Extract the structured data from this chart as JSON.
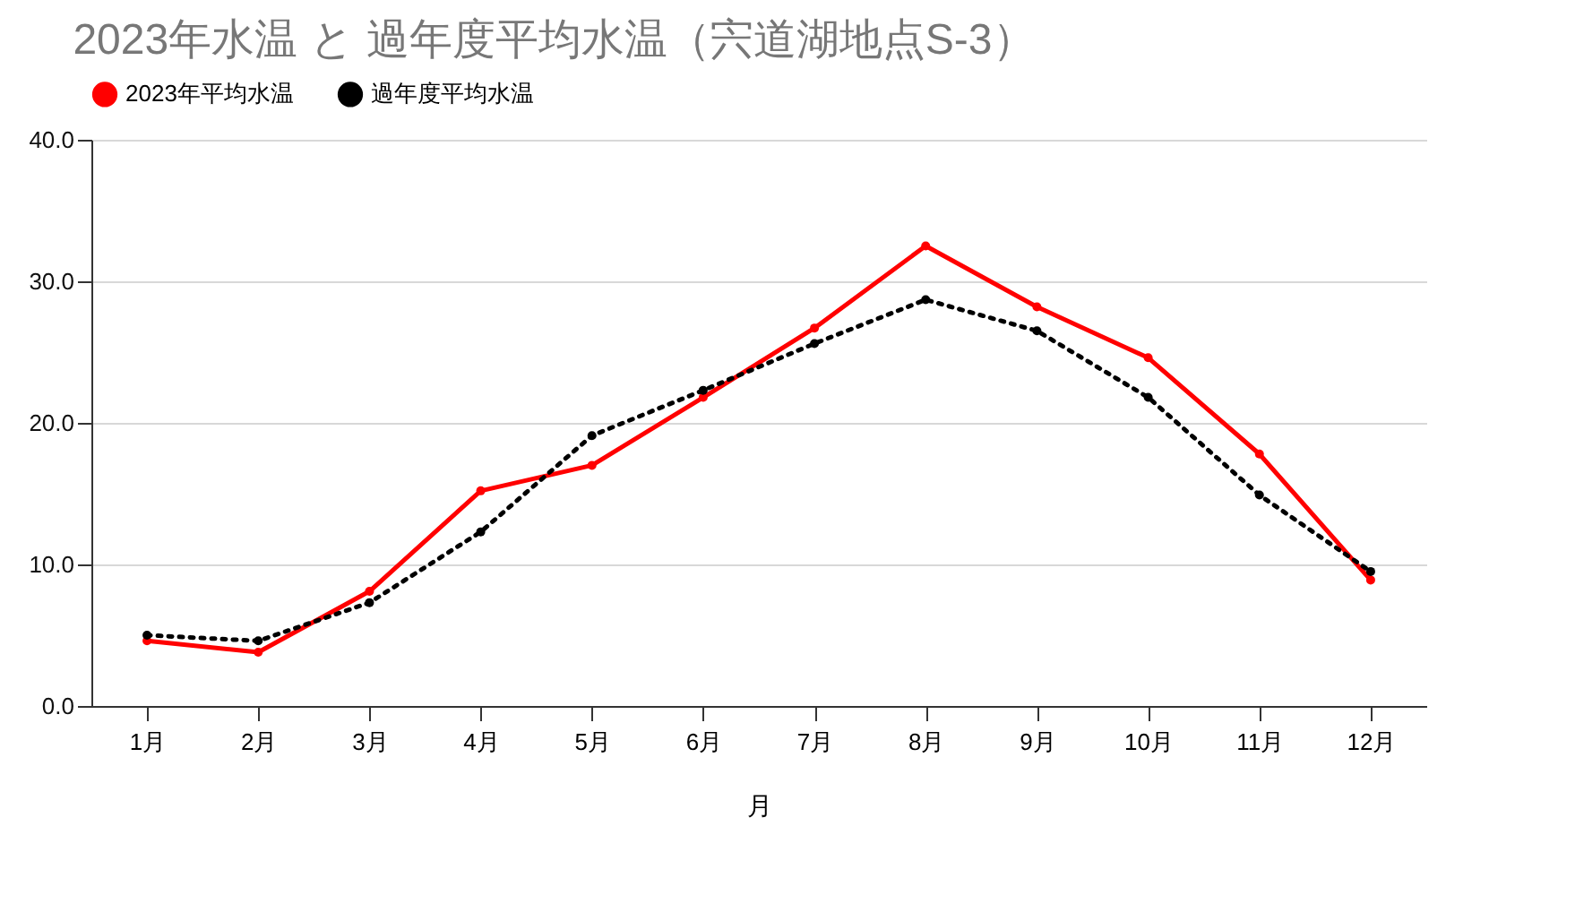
{
  "chart_data": {
    "type": "line",
    "title": "2023年水温 と 過年度平均水温（宍道湖地点S-3）",
    "xlabel": "月",
    "categories": [
      "1月",
      "2月",
      "3月",
      "4月",
      "5月",
      "6月",
      "7月",
      "8月",
      "9月",
      "10月",
      "11月",
      "12月"
    ],
    "series": [
      {
        "name": "2023年平均水温",
        "color": "#ff0000",
        "line_style": "solid",
        "values": [
          4.6,
          3.8,
          8.1,
          15.2,
          17.0,
          21.8,
          26.7,
          32.5,
          28.2,
          24.6,
          17.8,
          8.9
        ]
      },
      {
        "name": "過年度平均水温",
        "color": "#000000",
        "line_style": "dotted",
        "values": [
          5.0,
          4.6,
          7.3,
          12.3,
          19.1,
          22.3,
          25.6,
          28.7,
          26.5,
          21.8,
          14.9,
          9.5
        ]
      }
    ],
    "ylim": [
      0,
      40
    ],
    "yticks": [
      {
        "value": 0,
        "label": "0.0"
      },
      {
        "value": 10,
        "label": "10.0"
      },
      {
        "value": 20,
        "label": "20.0"
      },
      {
        "value": 30,
        "label": "30.0"
      },
      {
        "value": 40,
        "label": "40.0"
      }
    ],
    "grid": "y",
    "legend": "top",
    "marker": "circle"
  }
}
